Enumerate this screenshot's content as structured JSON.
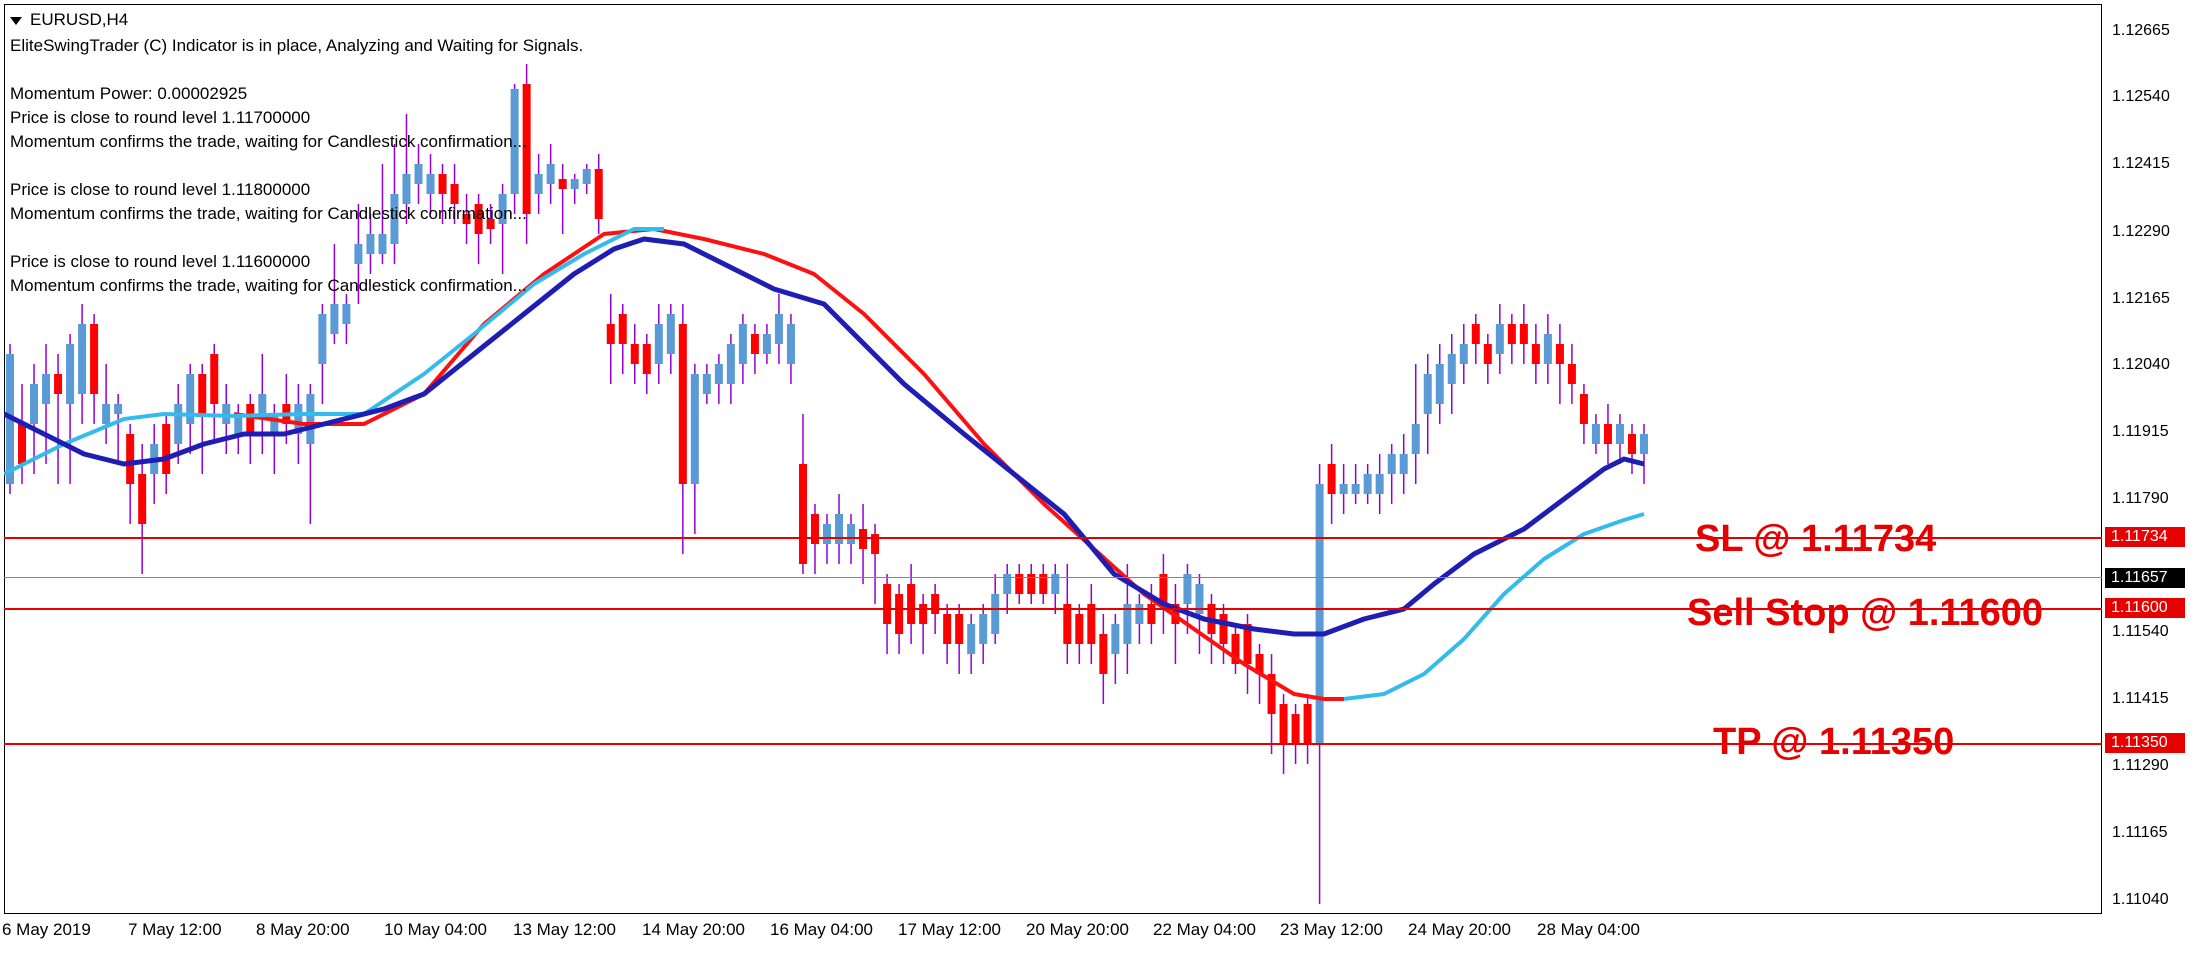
{
  "chart": {
    "symbol": "EURUSD,H4",
    "status_lines": [
      "EliteSwingTrader (C) Indicator is in place, Analyzing and Waiting for Signals.",
      "",
      "Momentum Power: 0.00002925",
      "Price is close to round level 1.11700000",
      "Momentum confirms the trade, waiting for Candlestick confirmation...",
      "",
      "Price is close to round level 1.11800000",
      "Momentum confirms the trade, waiting for Candlestick confirmation...",
      "",
      "Price is close to round level 1.11600000",
      "Momentum confirms the trade, waiting for Candlestick confirmation..."
    ],
    "price_scale": [
      "1.12665",
      "1.12540",
      "1.12415",
      "1.12290",
      "1.12165",
      "1.12040",
      "1.11915",
      "1.11790",
      "1.11540",
      "1.11415",
      "1.11290",
      "1.11165",
      "1.11040"
    ],
    "time_scale": [
      "6 May 2019",
      "7 May 12:00",
      "8 May 20:00",
      "10 May 04:00",
      "13 May 12:00",
      "14 May 20:00",
      "16 May 04:00",
      "17 May 12:00",
      "20 May 20:00",
      "22 May 04:00",
      "23 May 12:00",
      "24 May 20:00",
      "28 May 04:00"
    ],
    "price_tags": {
      "sl": "1.11734",
      "current": "1.11657",
      "entry": "1.11600",
      "tp": "1.11350"
    },
    "annotations": {
      "sl": "SL @ 1.11734",
      "entry": "Sell Stop @ 1.11600",
      "tp": "TP @ 1.11350"
    },
    "colors": {
      "bull": "#5b9bd5",
      "bear": "#ff0000",
      "wick": "#9400d3",
      "level_line": "#e60000",
      "current_line": "#778899",
      "ma_fast": "#1e1eb4",
      "ma_slow": "#ff1010",
      "ma_light": "#33bbee"
    }
  }
}
